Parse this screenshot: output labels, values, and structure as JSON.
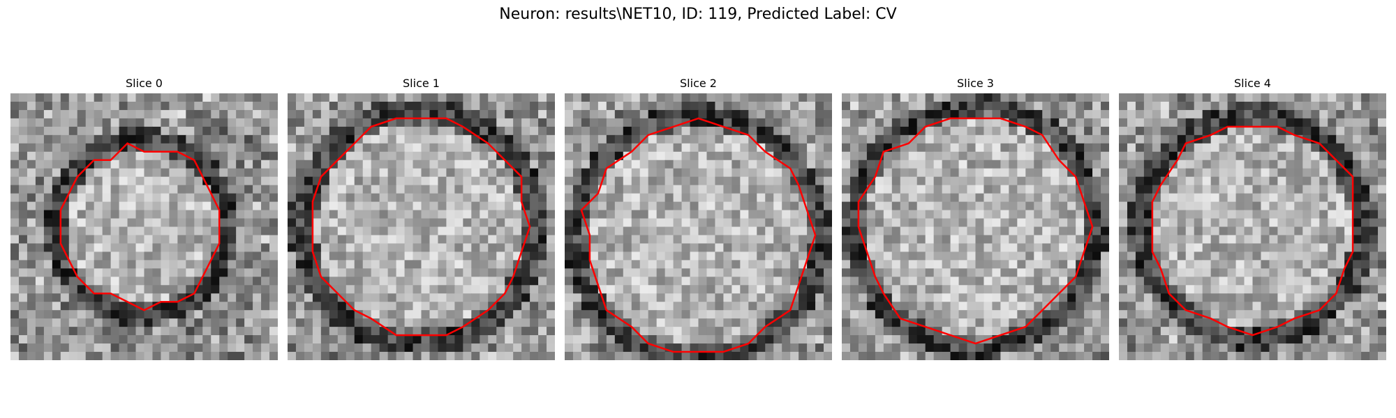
{
  "figure": {
    "title": "Neuron: results\\NET10, ID: 119, Predicted Label: CV"
  },
  "colors": {
    "contour": "#ff0000",
    "background": "#ffffff"
  },
  "panels": [
    {
      "title": "Slice 0"
    },
    {
      "title": "Slice 1"
    },
    {
      "title": "Slice 2"
    },
    {
      "title": "Slice 3"
    },
    {
      "title": "Slice 4"
    }
  ]
}
